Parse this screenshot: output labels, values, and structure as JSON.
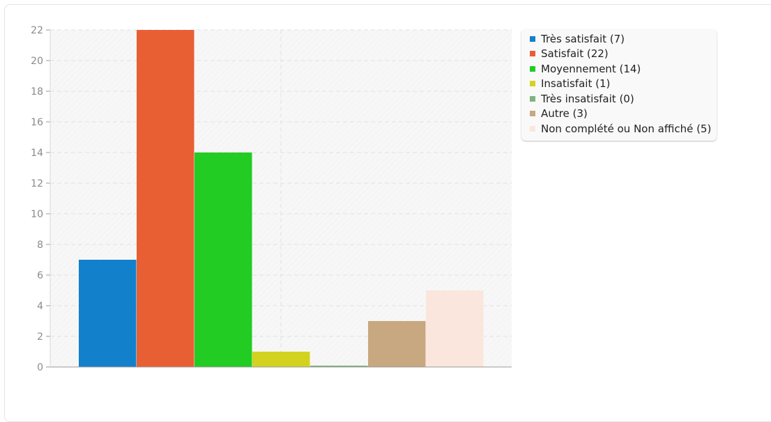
{
  "chart_data": {
    "type": "bar",
    "title": "",
    "xlabel": "",
    "ylabel": "",
    "ylim": [
      0,
      22
    ],
    "yticks": [
      0,
      2,
      4,
      6,
      8,
      10,
      12,
      14,
      16,
      18,
      20,
      22
    ],
    "grid": true,
    "legend_position": "right",
    "series": [
      {
        "name": "Très satisfait (7)",
        "value": 7,
        "color": "#1380cc"
      },
      {
        "name": "Satisfait (22)",
        "value": 22,
        "color": "#e85f33"
      },
      {
        "name": "Moyennement (14)",
        "value": 14,
        "color": "#22cc22"
      },
      {
        "name": "Insatisfait (1)",
        "value": 1,
        "color": "#d3d31f"
      },
      {
        "name": "Très insatisfait (0)",
        "value": 0,
        "color": "#7fb37f"
      },
      {
        "name": "Autre (3)",
        "value": 3,
        "color": "#c8a880"
      },
      {
        "name": "Non complété ou Non affiché (5)",
        "value": 5,
        "color": "#fbe6dd"
      }
    ]
  }
}
